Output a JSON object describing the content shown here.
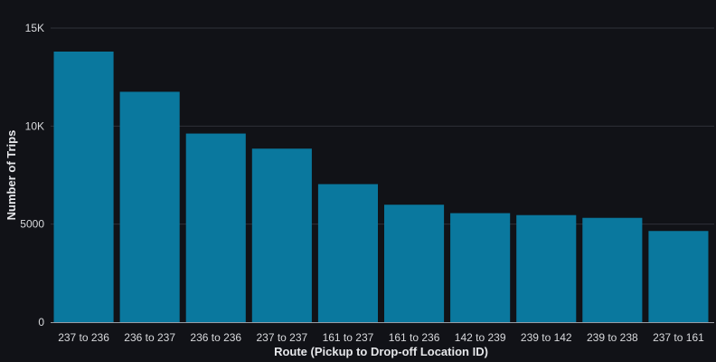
{
  "colors": {
    "background": "#111217",
    "bar": "#0a789e",
    "grid": "#2f3138",
    "text": "#d8d9dc"
  },
  "chart_data": {
    "type": "bar",
    "title": "",
    "xlabel": "Route (Pickup to Drop-off Location ID)",
    "ylabel": "Number of Trips",
    "categories": [
      "237 to 236",
      "236 to 237",
      "236 to 236",
      "237 to 237",
      "161 to 237",
      "161 to 236",
      "142 to 239",
      "239 to 142",
      "239 to 238",
      "237 to 161"
    ],
    "values": [
      13800,
      11750,
      9620,
      8850,
      7040,
      5990,
      5560,
      5460,
      5320,
      4650
    ],
    "ylim": [
      0,
      15000
    ],
    "yticks": [
      0,
      5000,
      10000,
      15000
    ],
    "ytick_labels": [
      "0",
      "5000",
      "10K",
      "15K"
    ],
    "grid": true,
    "legend": "none"
  }
}
